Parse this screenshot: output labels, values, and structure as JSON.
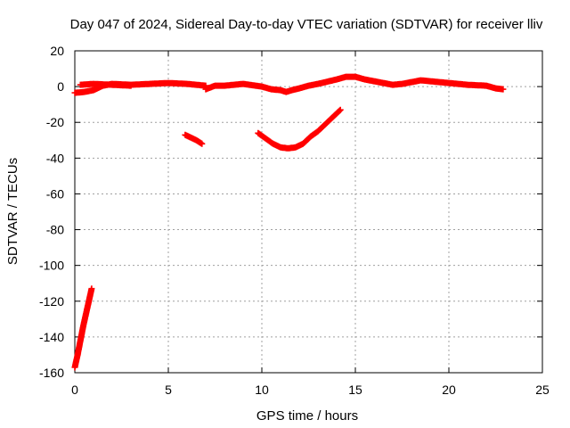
{
  "chart_data": {
    "type": "scatter",
    "title": "Day 047 of 2024, Sidereal Day-to-day VTEC variation (SDTVAR) for receiver lliv",
    "xlabel": "GPS time / hours",
    "ylabel": "SDTVAR / TECUs",
    "xlim": [
      0,
      25
    ],
    "ylim": [
      -160,
      20
    ],
    "xticks": [
      0,
      5,
      10,
      15,
      20,
      25
    ],
    "yticks": [
      20,
      0,
      -20,
      -40,
      -60,
      -80,
      -100,
      -120,
      -140,
      -160
    ],
    "grid": true,
    "marker": "plus",
    "color": "#ff0000",
    "series": [
      {
        "segments": [
          [
            [
              0.0,
              -157
            ],
            [
              0.15,
              -150
            ],
            [
              0.3,
              -142
            ],
            [
              0.45,
              -134
            ],
            [
              0.6,
              -127
            ],
            [
              0.75,
              -120
            ],
            [
              0.9,
              -113
            ]
          ],
          [
            [
              0.0,
              -3.5
            ],
            [
              0.5,
              -3
            ],
            [
              1.0,
              -2
            ],
            [
              1.5,
              0.5
            ],
            [
              2.0,
              1.5
            ],
            [
              3.0,
              1
            ],
            [
              4.0,
              1.5
            ],
            [
              5.0,
              2
            ],
            [
              6.0,
              1.5
            ],
            [
              6.5,
              1
            ],
            [
              7.0,
              0.5
            ]
          ],
          [
            [
              0.3,
              1
            ],
            [
              1.0,
              1.5
            ],
            [
              2.0,
              1
            ],
            [
              3.0,
              0.5
            ]
          ],
          [
            [
              7.0,
              -1.5
            ],
            [
              7.5,
              0.5
            ],
            [
              8.0,
              0.5
            ],
            [
              9.0,
              1.5
            ],
            [
              10.0,
              0
            ],
            [
              10.5,
              -1.5
            ],
            [
              11.0,
              -2
            ],
            [
              11.3,
              -3
            ],
            [
              11.6,
              -2
            ],
            [
              12.0,
              -1
            ],
            [
              12.5,
              0.5
            ],
            [
              13.0,
              1.5
            ],
            [
              14.0,
              4
            ],
            [
              14.5,
              5.5
            ],
            [
              15.0,
              5.5
            ],
            [
              15.5,
              4
            ],
            [
              16.0,
              3
            ],
            [
              17.0,
              1
            ],
            [
              17.5,
              1.5
            ],
            [
              18.0,
              2.5
            ],
            [
              18.5,
              3.5
            ],
            [
              19.0,
              3
            ],
            [
              19.5,
              2.5
            ],
            [
              20.0,
              2
            ],
            [
              21.0,
              1
            ],
            [
              22.0,
              0.5
            ],
            [
              22.5,
              -1
            ],
            [
              22.9,
              -1.5
            ]
          ],
          [
            [
              5.9,
              -27
            ],
            [
              6.2,
              -28.5
            ],
            [
              6.5,
              -30
            ],
            [
              6.8,
              -32
            ]
          ],
          [
            [
              9.8,
              -26
            ],
            [
              10.2,
              -29
            ],
            [
              10.6,
              -32
            ],
            [
              11.0,
              -34
            ],
            [
              11.4,
              -34.5
            ],
            [
              11.8,
              -34
            ],
            [
              12.2,
              -32
            ],
            [
              12.6,
              -28
            ],
            [
              13.0,
              -25
            ],
            [
              13.4,
              -21
            ],
            [
              13.8,
              -17
            ],
            [
              14.2,
              -13
            ]
          ]
        ]
      }
    ]
  }
}
